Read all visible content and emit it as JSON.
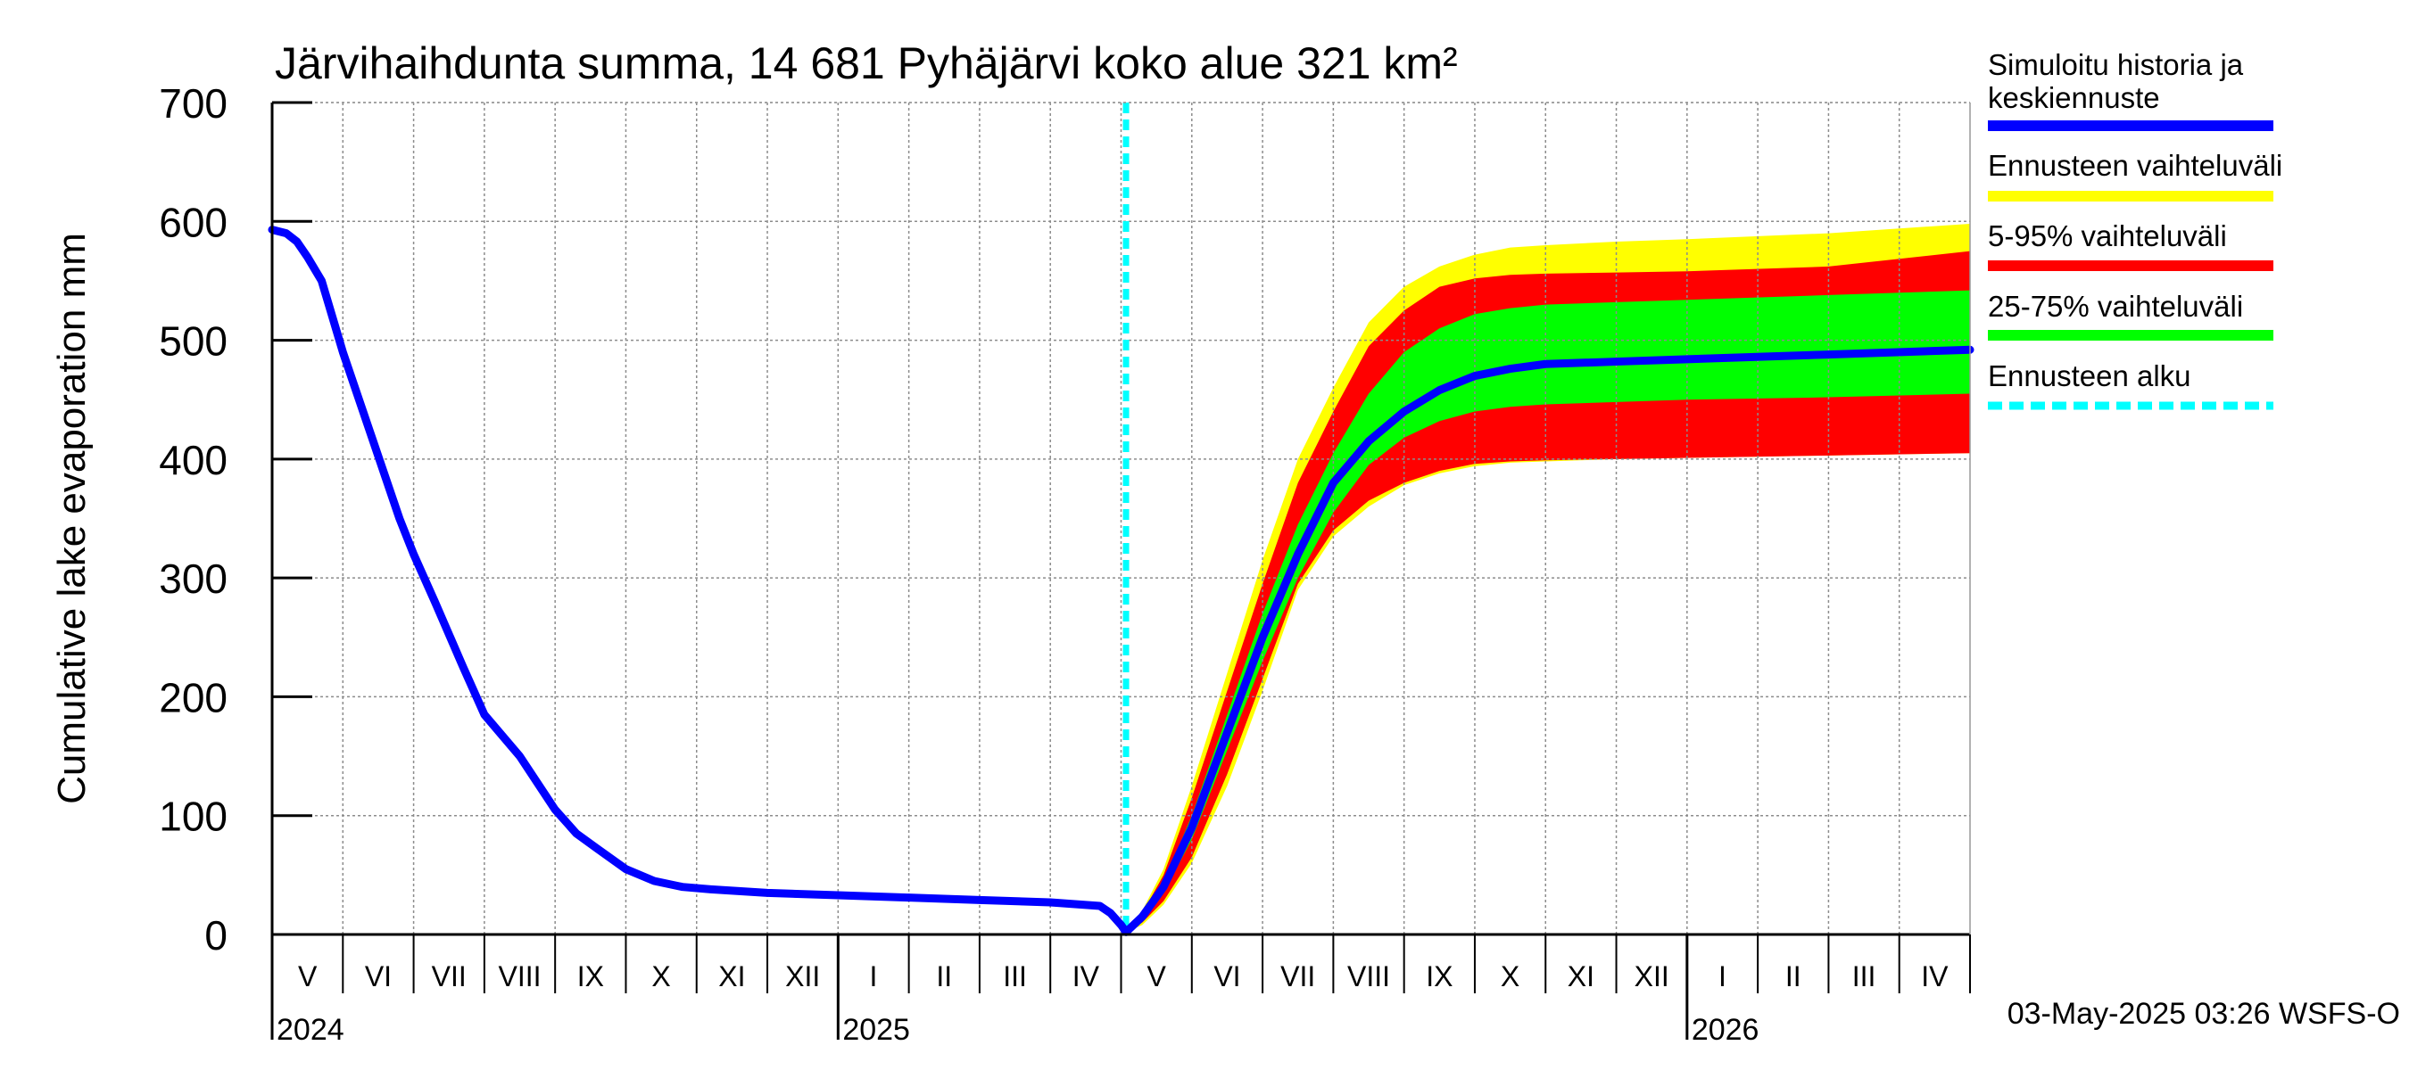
{
  "chart_data": {
    "type": "area",
    "title": "Järvihaihdunta summa, 14 681 Pyhäjärvi koko alue 321 km²",
    "ylabel": "Cumulative lake evaporation   mm",
    "xlabel": "",
    "ylim": [
      0,
      700
    ],
    "yticks": [
      0,
      100,
      200,
      300,
      400,
      500,
      600,
      700
    ],
    "x_unit": "months since 2024-04-01",
    "xlim": [
      0,
      24
    ],
    "months": [
      "V",
      "VI",
      "VII",
      "VIII",
      "IX",
      "X",
      "XI",
      "XII",
      "I",
      "II",
      "III",
      "IV",
      "V",
      "VI",
      "VII",
      "VIII",
      "IX",
      "X",
      "XI",
      "XII",
      "I",
      "II",
      "III",
      "IV"
    ],
    "years": [
      {
        "label": "2024",
        "x": 0
      },
      {
        "label": "2025",
        "x": 8
      },
      {
        "label": "2026",
        "x": 20
      }
    ],
    "forecast_start_x": 12.07,
    "grid": true,
    "series": [
      {
        "name": "Simuloitu historia ja keskiennuste",
        "color": "#0000ff",
        "x": [
          0,
          0.2,
          0.35,
          0.5,
          0.7,
          1.0,
          1.4,
          1.8,
          2.0,
          2.3,
          2.7,
          3.0,
          3.5,
          4.0,
          4.3,
          4.6,
          5.0,
          5.4,
          5.8,
          6.2,
          7.0,
          8.0,
          9.0,
          10.0,
          11.0,
          11.7,
          11.85,
          12.0,
          12.07,
          12.3,
          12.6,
          13.0,
          13.5,
          14.0,
          14.5,
          15.0,
          15.5,
          16.0,
          16.5,
          17.0,
          17.5,
          18.0,
          19.0,
          20.0,
          22.0,
          24.0
        ],
        "values": [
          593,
          590,
          583,
          570,
          550,
          490,
          420,
          350,
          320,
          280,
          225,
          185,
          150,
          105,
          85,
          72,
          55,
          45,
          40,
          38,
          35,
          33,
          31,
          29,
          27,
          24,
          18,
          8,
          2,
          15,
          40,
          90,
          170,
          250,
          320,
          380,
          415,
          440,
          458,
          470,
          476,
          480,
          482,
          484,
          488,
          492
        ]
      }
    ],
    "bands": [
      {
        "name": "Ennusteen vaihteluväli",
        "color": "#ffff00",
        "x": [
          12.07,
          12.3,
          12.6,
          13.0,
          13.5,
          14.0,
          14.5,
          15.0,
          15.5,
          16.0,
          16.5,
          17.0,
          17.5,
          18.0,
          19.0,
          20.0,
          22.0,
          24.0
        ],
        "upper": [
          2,
          20,
          55,
          125,
          220,
          315,
          400,
          460,
          515,
          545,
          562,
          572,
          578,
          580,
          583,
          585,
          590,
          598
        ],
        "lower": [
          2,
          8,
          25,
          60,
          125,
          205,
          290,
          335,
          360,
          378,
          388,
          394,
          397,
          398,
          400,
          401,
          403,
          405
        ]
      },
      {
        "name": "5-95% vaihteluväli",
        "color": "#ff0000",
        "x": [
          12.07,
          12.3,
          12.6,
          13.0,
          13.5,
          14.0,
          14.5,
          15.0,
          15.5,
          16.0,
          16.5,
          17.0,
          17.5,
          18.0,
          19.0,
          20.0,
          22.0,
          24.0
        ],
        "upper": [
          2,
          18,
          50,
          115,
          205,
          295,
          380,
          440,
          495,
          525,
          545,
          552,
          555,
          556,
          557,
          558,
          562,
          575
        ],
        "lower": [
          2,
          10,
          28,
          65,
          135,
          215,
          295,
          340,
          365,
          380,
          390,
          396,
          398,
          399,
          400,
          401,
          403,
          405
        ]
      },
      {
        "name": "25-75% vaihteluväli",
        "color": "#00ff00",
        "x": [
          12.07,
          12.3,
          12.6,
          13.0,
          13.5,
          14.0,
          14.5,
          15.0,
          15.5,
          16.0,
          16.5,
          17.0,
          17.5,
          18.0,
          19.0,
          20.0,
          22.0,
          24.0
        ],
        "upper": [
          2,
          16,
          44,
          100,
          185,
          270,
          345,
          405,
          455,
          490,
          510,
          522,
          527,
          530,
          532,
          534,
          538,
          542
        ],
        "lower": [
          2,
          12,
          35,
          80,
          155,
          230,
          300,
          355,
          395,
          418,
          432,
          440,
          444,
          446,
          448,
          450,
          452,
          455
        ]
      }
    ],
    "legend": [
      {
        "label": "Simuloitu historia ja keskiennuste",
        "color": "#0000ff",
        "style": "solid"
      },
      {
        "label": "Ennusteen vaihteluväli",
        "color": "#ffff00",
        "style": "solid"
      },
      {
        "label": "5-95% vaihteluväli",
        "color": "#ff0000",
        "style": "solid"
      },
      {
        "label": "25-75% vaihteluväli",
        "color": "#00ff00",
        "style": "solid"
      },
      {
        "label": "Ennusteen alku",
        "color": "#00ffff",
        "style": "dashed"
      }
    ],
    "legend_position": "right",
    "footer": "03-May-2025 03:26 WSFS-O"
  }
}
